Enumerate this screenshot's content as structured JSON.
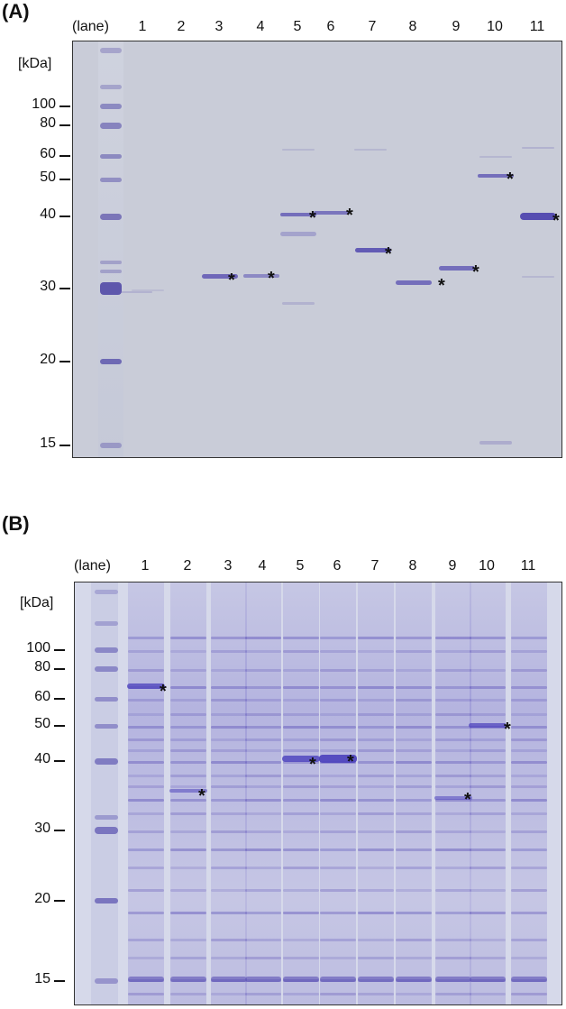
{
  "panelA": {
    "label": "(A)",
    "lane_header": "(lane)",
    "lanes": [
      "1",
      "2",
      "3",
      "4",
      "5",
      "6",
      "7",
      "8",
      "9",
      "10",
      "11"
    ],
    "unit": "[kDa]",
    "markers": [
      "100",
      "80",
      "60",
      "50",
      "40",
      "30",
      "20",
      "15"
    ]
  },
  "panelB": {
    "label": "(B)",
    "lane_header": "(lane)",
    "lanes": [
      "1",
      "2",
      "3",
      "4",
      "5",
      "6",
      "7",
      "8",
      "9",
      "10",
      "11"
    ],
    "unit": "[kDa]",
    "markers": [
      "100",
      "80",
      "60",
      "50",
      "40",
      "30",
      "20",
      "15"
    ]
  },
  "asterisk": "*"
}
